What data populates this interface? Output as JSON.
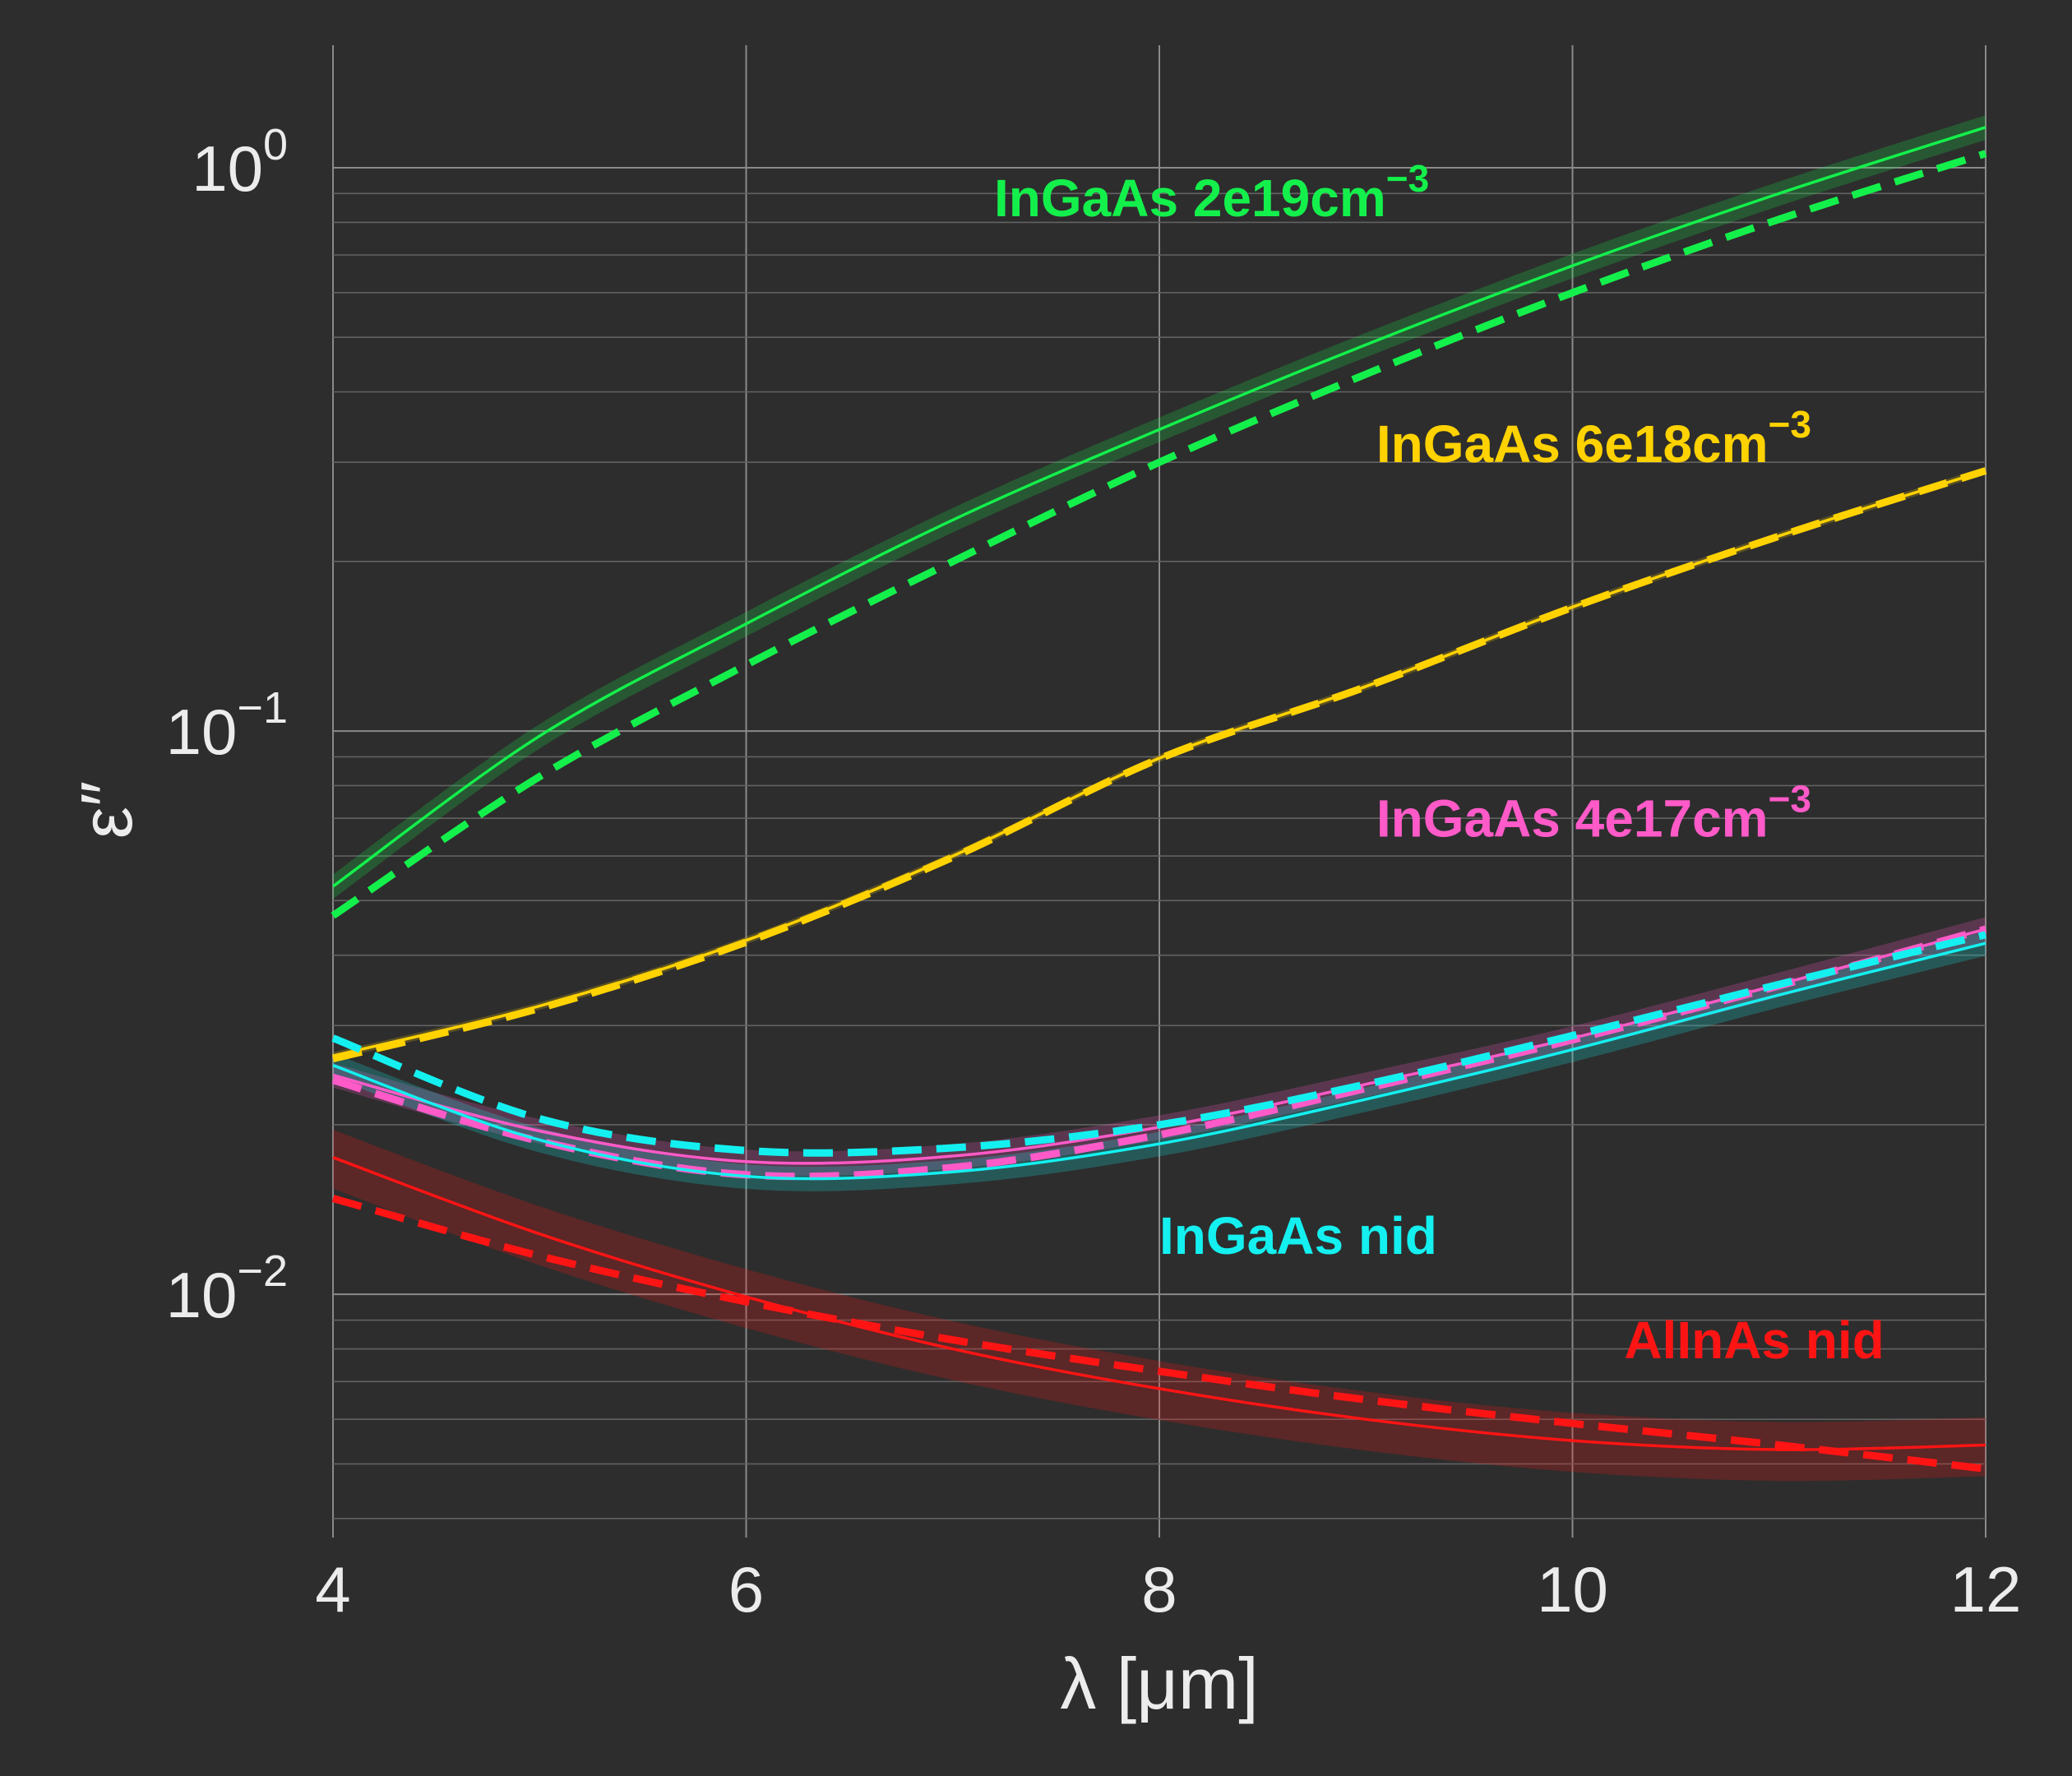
{
  "chart_data": {
    "type": "line",
    "xlabel": "λ [μm]",
    "ylabel": "ε″",
    "xlim": [
      4,
      12
    ],
    "ylim": [
      0.0037,
      1.65
    ],
    "yscale": "log",
    "grid": true,
    "x_ticks": [
      4,
      6,
      8,
      10,
      12
    ],
    "y_ticks": [
      {
        "value": 0.01,
        "base": "10",
        "exp": "−2"
      },
      {
        "value": 0.1,
        "base": "10",
        "exp": "−1"
      },
      {
        "value": 1,
        "base": "10",
        "exp": "0"
      }
    ],
    "series": [
      {
        "name": "InGaAs 2e19cm⁻³",
        "color": "#14f04b",
        "x": [
          4,
          5,
          6,
          7,
          8,
          9,
          10,
          11,
          12
        ],
        "y": [
          0.053,
          0.098,
          0.155,
          0.237,
          0.343,
          0.485,
          0.67,
          0.9,
          1.18
        ],
        "band": 0.05,
        "dashed_y": [
          0.047,
          0.083,
          0.131,
          0.2,
          0.3,
          0.43,
          0.6,
          0.81,
          1.06
        ]
      },
      {
        "name": "InGaAs 6e18cm⁻³",
        "color": "#ffd200",
        "x": [
          4,
          5,
          6,
          7,
          8,
          9,
          10,
          11,
          12
        ],
        "y": [
          0.0265,
          0.0325,
          0.0425,
          0.06,
          0.0895,
          0.12,
          0.166,
          0.222,
          0.29
        ],
        "band": 0.015,
        "dashed_y": [
          0.0262,
          0.0322,
          0.0422,
          0.0597,
          0.0893,
          0.1198,
          0.1658,
          0.2218,
          0.2898
        ]
      },
      {
        "name": "InGaAs 4e17cm⁻³",
        "color": "#ff5ac8",
        "x": [
          4,
          5,
          6,
          7,
          8,
          9,
          10,
          11,
          12
        ],
        "y": [
          0.0245,
          0.0195,
          0.0172,
          0.0176,
          0.0198,
          0.0236,
          0.0285,
          0.0355,
          0.0445
        ],
        "band": 0.05,
        "dashed_y": [
          0.024,
          0.0187,
          0.0163,
          0.0168,
          0.0192,
          0.0232,
          0.0283,
          0.0353,
          0.0445
        ]
      },
      {
        "name": "InGaAs nid",
        "color": "#14f0f0",
        "x": [
          4,
          5,
          6,
          7,
          8,
          9,
          10,
          11,
          12
        ],
        "y": [
          0.0255,
          0.0188,
          0.0162,
          0.0165,
          0.0185,
          0.0222,
          0.0272,
          0.034,
          0.042
        ],
        "band": 0.05,
        "dashed_y": [
          0.0285,
          0.0205,
          0.018,
          0.0182,
          0.02,
          0.0236,
          0.0288,
          0.0355,
          0.0435
        ]
      },
      {
        "name": "AlInAs nid",
        "color": "#ff1414",
        "x": [
          4,
          5,
          6,
          7,
          8,
          9,
          10,
          11,
          12
        ],
        "y": [
          0.0175,
          0.0128,
          0.0099,
          0.008,
          0.0068,
          0.006,
          0.0055,
          0.0053,
          0.0054
        ],
        "band": 0.12,
        "dashed_y": [
          0.0148,
          0.0117,
          0.0097,
          0.0083,
          0.0073,
          0.0065,
          0.0059,
          0.0054,
          0.0049
        ]
      }
    ],
    "annotations": [
      {
        "series": 0,
        "text": "InGaAs 2e19cm",
        "sup": "−3",
        "x": 7.2,
        "y": 0.82
      },
      {
        "series": 1,
        "text": "InGaAs 6e18cm",
        "sup": "−3",
        "x": 9.05,
        "y": 0.3
      },
      {
        "series": 2,
        "text": "InGaAs 4e17cm",
        "sup": "−3",
        "x": 9.05,
        "y": 0.065
      },
      {
        "series": 3,
        "text": "InGaAs nid",
        "sup": "",
        "x": 8.0,
        "y": 0.0118
      },
      {
        "series": 4,
        "text": "AlInAs nid",
        "sup": "",
        "x": 10.25,
        "y": 0.0077
      }
    ]
  }
}
